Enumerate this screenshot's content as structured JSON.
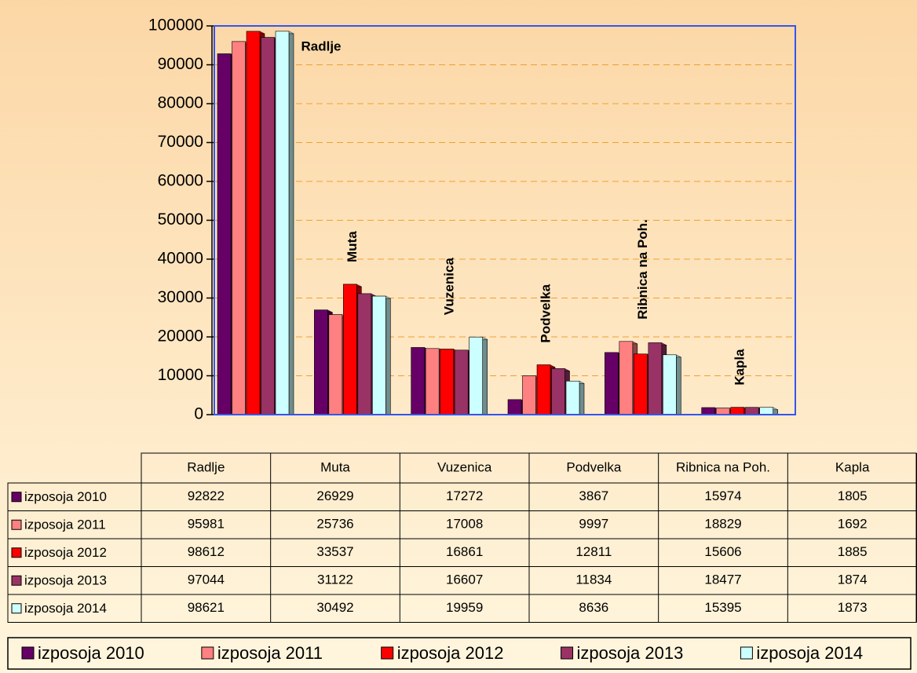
{
  "chart_data": {
    "type": "bar",
    "categories": [
      "Radlje",
      "Muta",
      "Vuzenica",
      "Podvelka",
      "Ribnica na Poh.",
      "Kapla"
    ],
    "series": [
      {
        "name": "izposoja 2010",
        "color": "#660066",
        "values": [
          92822,
          26929,
          17272,
          3867,
          15974,
          1805
        ]
      },
      {
        "name": "izposoja 2011",
        "color": "#ff8080",
        "values": [
          95981,
          25736,
          17008,
          9997,
          18829,
          1692
        ]
      },
      {
        "name": "izposoja 2012",
        "color": "#ff0000",
        "values": [
          98612,
          33537,
          16861,
          12811,
          15606,
          1885
        ]
      },
      {
        "name": "izposoja 2013",
        "color": "#993366",
        "values": [
          97044,
          31122,
          16607,
          11834,
          18477,
          1874
        ]
      },
      {
        "name": "izposoja 2014",
        "color": "#ccffff",
        "values": [
          98621,
          30492,
          19959,
          8636,
          15395,
          1873
        ]
      }
    ],
    "ylim": [
      0,
      100000
    ],
    "yticks": [
      0,
      10000,
      20000,
      30000,
      40000,
      50000,
      60000,
      70000,
      80000,
      90000,
      100000
    ],
    "grid": true
  }
}
